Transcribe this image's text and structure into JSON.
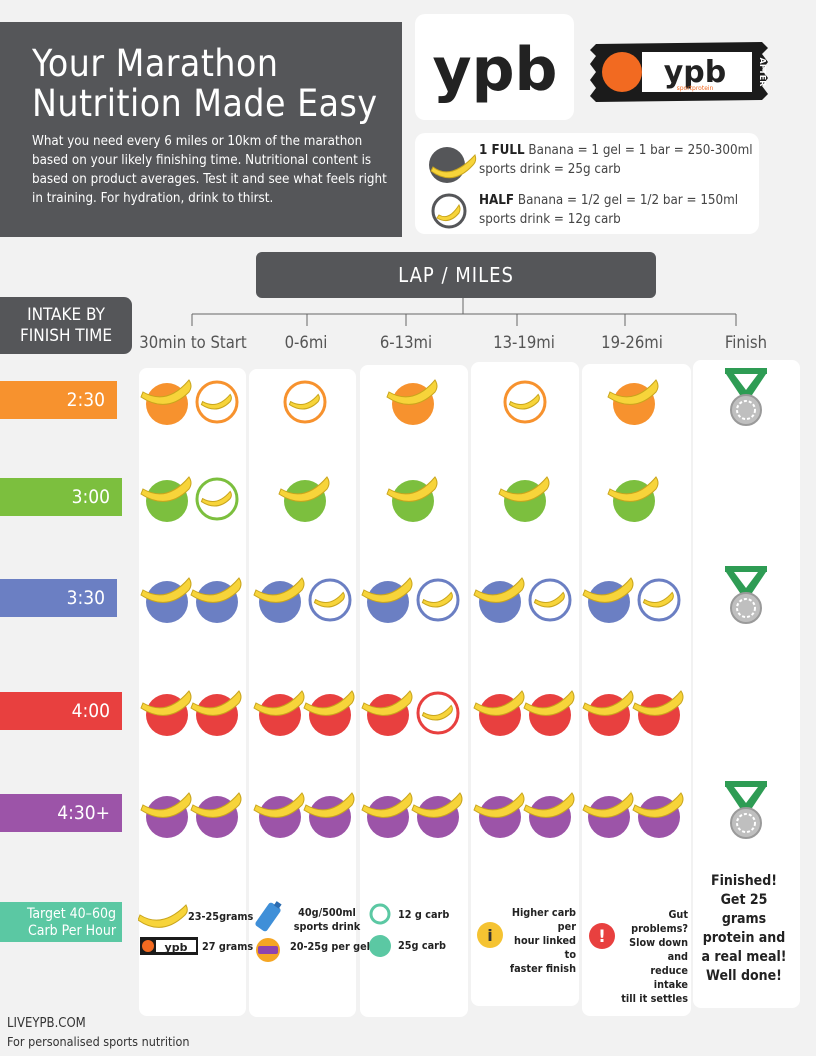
{
  "header": {
    "title_line1": "Your Marathon",
    "title_line2": "Nutrition Made Easy",
    "intro": "What you need every 6 miles or 10km of the marathon based on your likely finishing time. Nutritional content is based on product averages. Test it and see what feels right in training. For hydration, drink to thirst."
  },
  "brand": {
    "logo_text": "ypb",
    "product_label": "AFTER",
    "product_sub": "sportprotein"
  },
  "legend": {
    "full_bold": "1 FULL",
    "full_text": " Banana = 1 gel = 1 bar = 250-300ml sports drink = 25g carb",
    "half_bold": "HALF",
    "half_text": " Banana = 1/2 gel = 1/2 bar = 150ml sports drink = 12g carb"
  },
  "grid": {
    "lap_header": "LAP / MILES",
    "intake_label_line1": "INTAKE BY",
    "intake_label_line2": "FINISH TIME",
    "columns": [
      "30min to Start",
      "0-6mi",
      "6-13mi",
      "13-19mi",
      "19-26mi",
      "Finish"
    ],
    "rows": [
      {
        "label": "2:30",
        "color": "#f7922e",
        "cells": [
          [
            "full",
            "half"
          ],
          [
            "half"
          ],
          [
            "full"
          ],
          [
            "half"
          ],
          [
            "full"
          ]
        ],
        "medal": true
      },
      {
        "label": "3:00",
        "color": "#7cbf3e",
        "cells": [
          [
            "full",
            "half"
          ],
          [
            "full"
          ],
          [
            "full"
          ],
          [
            "full"
          ],
          [
            "full"
          ]
        ],
        "medal": false
      },
      {
        "label": "3:30",
        "color": "#6b7fc3",
        "cells": [
          [
            "full",
            "full"
          ],
          [
            "full",
            "half"
          ],
          [
            "full",
            "half"
          ],
          [
            "full",
            "half"
          ],
          [
            "full",
            "half"
          ]
        ],
        "medal": true
      },
      {
        "label": "4:00",
        "color": "#e8403f",
        "cells": [
          [
            "full",
            "full"
          ],
          [
            "full",
            "full"
          ],
          [
            "full",
            "half"
          ],
          [
            "full",
            "full"
          ],
          [
            "full",
            "full"
          ]
        ],
        "medal": false
      },
      {
        "label": "4:30+",
        "color": "#9c54a8",
        "cells": [
          [
            "full",
            "full"
          ],
          [
            "full",
            "full"
          ],
          [
            "full",
            "full"
          ],
          [
            "full",
            "full"
          ],
          [
            "full",
            "full"
          ]
        ],
        "medal": true
      }
    ]
  },
  "target": {
    "line1": "Target 40–60g",
    "line2": "Carb Per Hour"
  },
  "notes": {
    "banana": "23-25grams",
    "bar": "27 grams",
    "drink_line1": "40g/500ml",
    "drink_line2": "sports drink",
    "gel": "20-25g per gel",
    "carb12": "12 g carb",
    "carb25": "25g carb",
    "info_line1": "Higher carb per",
    "info_line2": "hour linked to",
    "info_line3": "faster finish",
    "warn_line1": "Gut problems?",
    "warn_line2": "Slow down and",
    "warn_line3": "reduce intake",
    "warn_line4": "till it settles",
    "finish_line1": "Finished!",
    "finish_line2": "Get 25",
    "finish_line3": "grams",
    "finish_line4": "protein and",
    "finish_line5": "a real meal!",
    "finish_line6": "Well done!"
  },
  "colors": {
    "teal": "#5bc8a3",
    "info": "#f5c332",
    "warn": "#e8403f",
    "dark": "#555659",
    "banana": "#f7d43a"
  },
  "footer": {
    "site": "LIVEYPB.COM",
    "tagline": "For personalised sports nutrition"
  }
}
